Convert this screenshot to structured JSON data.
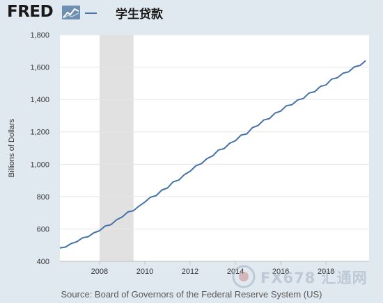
{
  "header": {
    "logo_text": "FRED",
    "title": "学生贷款"
  },
  "source": "Source: Board of Governors of the Federal Reserve System (US)",
  "watermark": {
    "text": "FX678 汇通网"
  },
  "colors": {
    "series": "#4572a7",
    "recession": "#e1e1e1",
    "grid": "#e6e6e6",
    "background": "#e1e9f0",
    "plot": "#ffffff"
  },
  "chart_data": {
    "type": "line",
    "title": "学生贷款",
    "ylabel": "Billions of Dollars",
    "xlabel": "",
    "xlim": [
      2006.25,
      2019.9
    ],
    "ylim": [
      400,
      1800
    ],
    "y_ticks": [
      400,
      600,
      800,
      1000,
      1200,
      1400,
      1600,
      1800
    ],
    "y_tick_labels": [
      "400",
      "600",
      "800",
      "1,000",
      "1,200",
      "1,400",
      "1,600",
      "1,800"
    ],
    "x_ticks": [
      2008,
      2010,
      2012,
      2014,
      2016,
      2018
    ],
    "x_tick_labels": [
      "2008",
      "2010",
      "2012",
      "2014",
      "2016",
      "2018"
    ],
    "grid": "horizontal",
    "recession_shading": [
      [
        2008.0,
        2009.5
      ]
    ],
    "series": [
      {
        "x": [
          2006.25,
          2006.5,
          2006.75,
          2007.0,
          2007.25,
          2007.5,
          2007.75,
          2008.0,
          2008.25,
          2008.5,
          2008.75,
          2009.0,
          2009.25,
          2009.5,
          2009.75,
          2010.0,
          2010.25,
          2010.5,
          2010.75,
          2011.0,
          2011.25,
          2011.5,
          2011.75,
          2012.0,
          2012.25,
          2012.5,
          2012.75,
          2013.0,
          2013.25,
          2013.5,
          2013.75,
          2014.0,
          2014.25,
          2014.5,
          2014.75,
          2015.0,
          2015.25,
          2015.5,
          2015.75,
          2016.0,
          2016.25,
          2016.5,
          2016.75,
          2017.0,
          2017.25,
          2017.5,
          2017.75,
          2018.0,
          2018.25,
          2018.5,
          2018.75,
          2019.0,
          2019.25,
          2019.5,
          2019.75
        ],
        "values": [
          483,
          488,
          510,
          521,
          545,
          552,
          576,
          589,
          618,
          626,
          656,
          674,
          705,
          713,
          742,
          766,
          796,
          806,
          840,
          853,
          891,
          902,
          936,
          956,
          990,
          1004,
          1035,
          1052,
          1088,
          1096,
          1130,
          1145,
          1180,
          1187,
          1226,
          1239,
          1273,
          1282,
          1316,
          1328,
          1361,
          1368,
          1397,
          1406,
          1440,
          1448,
          1481,
          1490,
          1526,
          1534,
          1562,
          1571,
          1602,
          1610,
          1640
        ]
      }
    ]
  }
}
